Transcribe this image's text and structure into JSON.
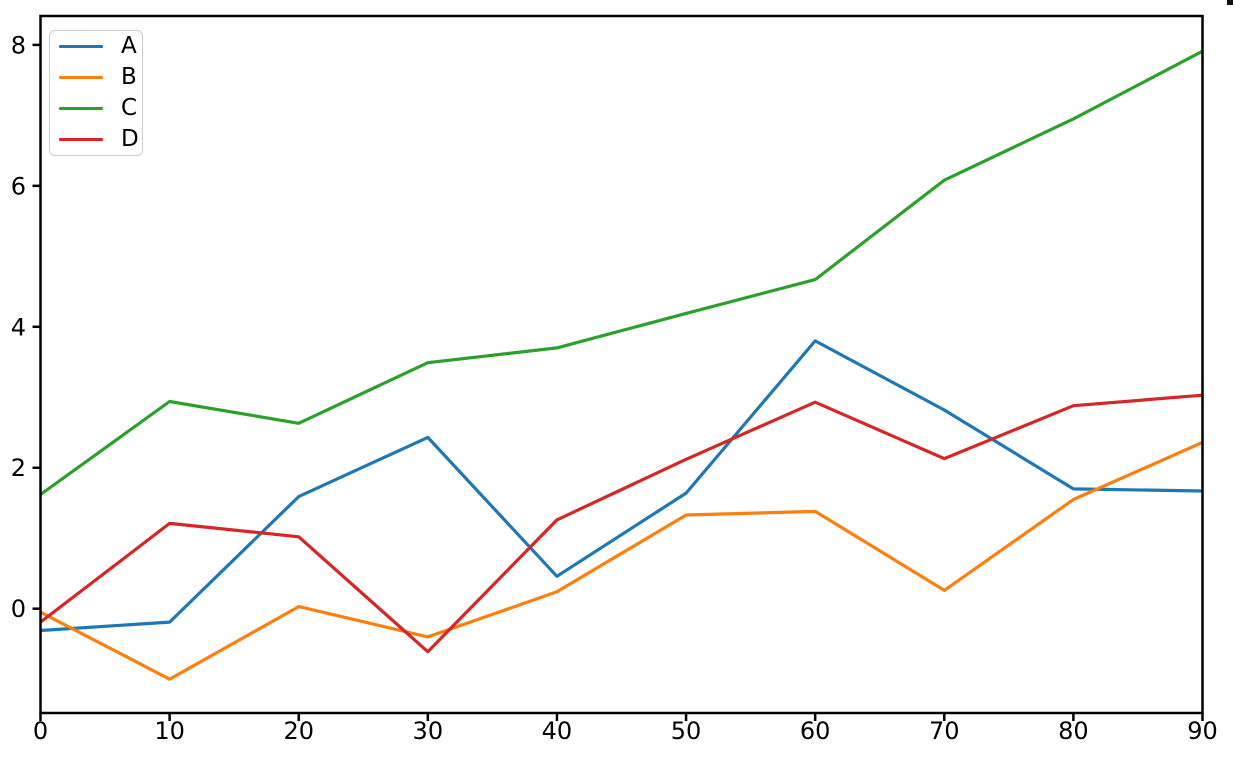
{
  "figure": {
    "background": "#ffffff",
    "spine_color": "#000000",
    "tick_color": "#000000",
    "tick_label_color": "#000000"
  },
  "chart_data": {
    "type": "line",
    "title": "",
    "xlabel": "",
    "ylabel": "",
    "grid": false,
    "legend_position": "upper left",
    "x": [
      0,
      10,
      20,
      30,
      40,
      50,
      60,
      70,
      80,
      90
    ],
    "series": [
      {
        "name": "A",
        "color": "#1f77b4",
        "values": [
          -0.31,
          -0.19,
          1.59,
          2.43,
          0.46,
          1.64,
          3.8,
          2.82,
          1.7,
          1.67
        ]
      },
      {
        "name": "B",
        "color": "#ff7f0e",
        "values": [
          -0.05,
          -1.0,
          0.03,
          -0.4,
          0.24,
          1.33,
          1.38,
          0.26,
          1.55,
          2.36
        ]
      },
      {
        "name": "C",
        "color": "#2ca02c",
        "values": [
          1.62,
          2.94,
          2.63,
          3.49,
          3.7,
          4.19,
          4.67,
          6.08,
          6.95,
          7.91
        ]
      },
      {
        "name": "D",
        "color": "#d62728",
        "values": [
          -0.19,
          1.21,
          1.02,
          -0.61,
          1.26,
          2.12,
          2.93,
          2.13,
          2.88,
          3.03
        ]
      }
    ],
    "xlim": [
      0,
      90
    ],
    "ylim": [
      -1.48,
      8.41
    ],
    "xticks": [
      0,
      10,
      20,
      30,
      40,
      50,
      60,
      70,
      80,
      90
    ],
    "yticks": [
      0,
      2,
      4,
      6,
      8
    ]
  },
  "legend": {
    "entries": [
      {
        "label": "A",
        "color": "#1f77b4"
      },
      {
        "label": "B",
        "color": "#ff7f0e"
      },
      {
        "label": "C",
        "color": "#2ca02c"
      },
      {
        "label": "D",
        "color": "#d62728"
      }
    ]
  }
}
